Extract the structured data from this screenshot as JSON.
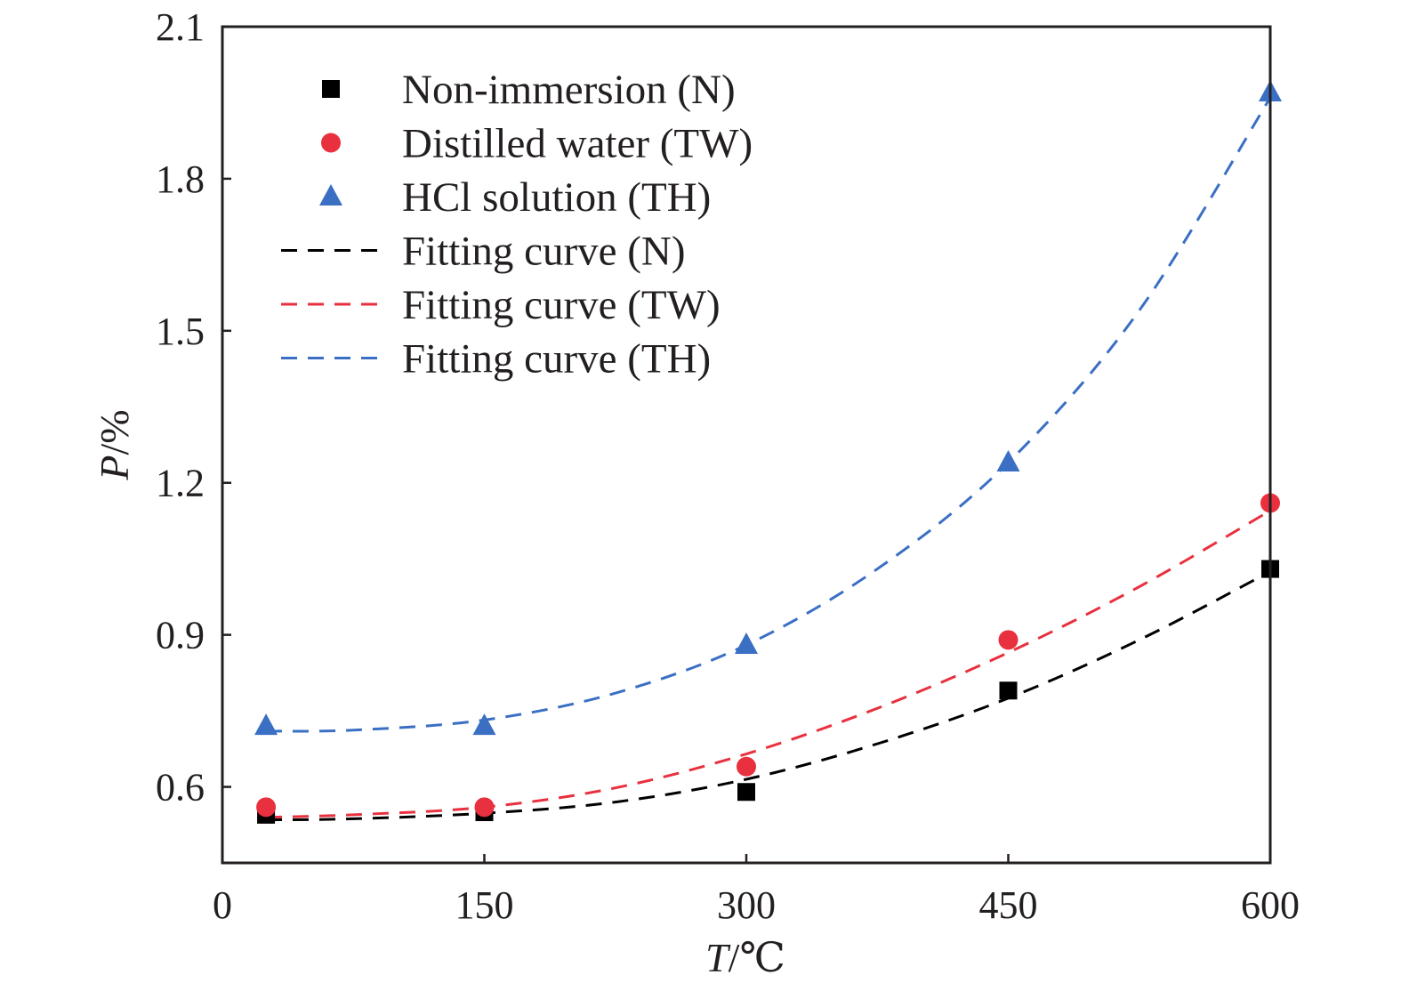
{
  "chart_data": {
    "type": "scatter",
    "xlabel": {
      "var": "T",
      "sep": "/",
      "unit": "℃"
    },
    "ylabel": {
      "var": "P",
      "sep": "/",
      "unit": "%"
    },
    "xlim": [
      0,
      600
    ],
    "ylim": [
      0.45,
      2.1
    ],
    "xticks": [
      0,
      150,
      300,
      450,
      600
    ],
    "yticks": [
      0.6,
      0.9,
      1.2,
      1.5,
      1.8,
      2.1
    ],
    "grid": false,
    "legend_position": "top-left",
    "series": [
      {
        "name": "Non-immersion (N)",
        "kind": "marker",
        "marker": "square",
        "color": "#000000",
        "x": [
          25,
          150,
          300,
          450,
          600
        ],
        "y": [
          0.545,
          0.55,
          0.59,
          0.79,
          1.03
        ]
      },
      {
        "name": "Distilled water (TW)",
        "kind": "marker",
        "marker": "circle",
        "color": "#e8303e",
        "x": [
          25,
          150,
          300,
          450,
          600
        ],
        "y": [
          0.56,
          0.56,
          0.64,
          0.89,
          1.16
        ]
      },
      {
        "name": "HCl solution (TH)",
        "kind": "marker",
        "marker": "triangle",
        "color": "#3a6fc4",
        "x": [
          25,
          150,
          300,
          450,
          600
        ],
        "y": [
          0.72,
          0.72,
          0.88,
          1.24,
          1.97
        ]
      },
      {
        "name": "Fitting curve (N)",
        "kind": "line",
        "dash": true,
        "color": "#000000",
        "x": [
          25,
          75,
          150,
          225,
          300,
          375,
          450,
          525,
          600
        ],
        "y": [
          0.535,
          0.537,
          0.548,
          0.57,
          0.615,
          0.685,
          0.775,
          0.89,
          1.025
        ]
      },
      {
        "name": "Fitting curve (TW)",
        "kind": "line",
        "dash": true,
        "color": "#e8303e",
        "x": [
          25,
          75,
          150,
          225,
          300,
          375,
          450,
          525,
          600
        ],
        "y": [
          0.54,
          0.545,
          0.56,
          0.598,
          0.665,
          0.755,
          0.865,
          0.995,
          1.145
        ]
      },
      {
        "name": "Fitting curve (TH)",
        "kind": "line",
        "dash": true,
        "color": "#3a6fc4",
        "x": [
          25,
          75,
          150,
          225,
          300,
          375,
          450,
          525,
          600
        ],
        "y": [
          0.71,
          0.712,
          0.732,
          0.785,
          0.88,
          1.03,
          1.24,
          1.54,
          1.96
        ]
      }
    ]
  }
}
